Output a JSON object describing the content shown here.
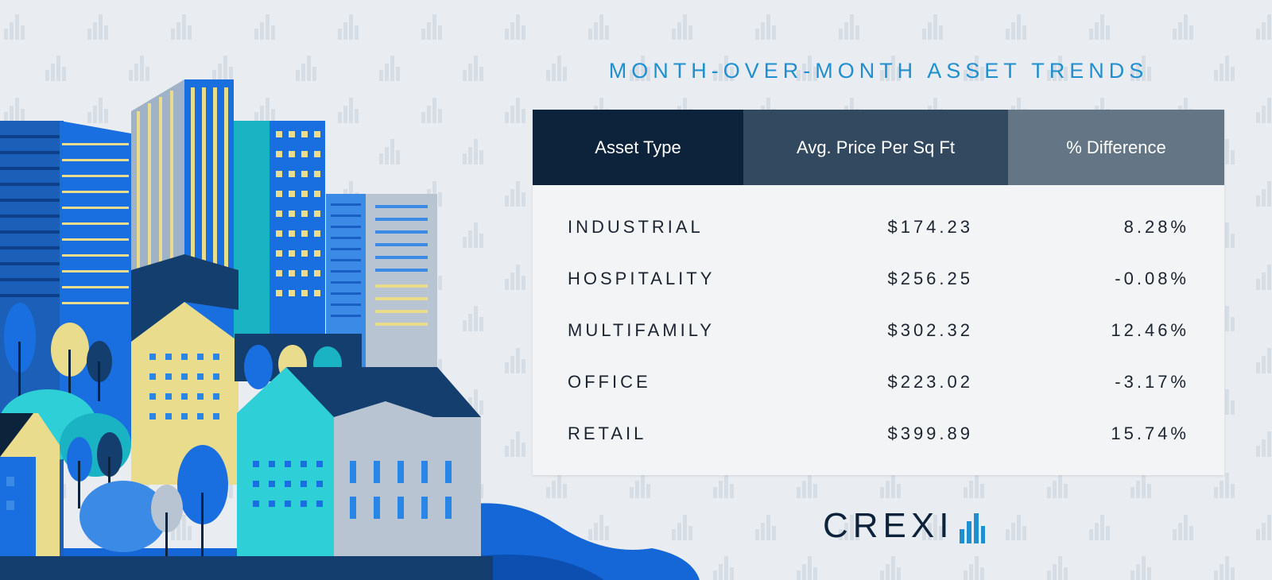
{
  "title": "MONTH-OVER-MONTH ASSET TRENDS",
  "table": {
    "headers": [
      "Asset Type",
      "Avg. Price Per Sq Ft",
      "% Difference"
    ],
    "rows": [
      {
        "asset": "INDUSTRIAL",
        "price": "$174.23",
        "diff": "8.28%"
      },
      {
        "asset": "HOSPITALITY",
        "price": "$256.25",
        "diff": "-0.08%"
      },
      {
        "asset": "MULTIFAMILY",
        "price": "$302.32",
        "diff": "12.46%"
      },
      {
        "asset": "OFFICE",
        "price": "$223.02",
        "diff": "-3.17%"
      },
      {
        "asset": "RETAIL",
        "price": "$399.89",
        "diff": "15.74%"
      }
    ]
  },
  "logo": {
    "text": "CREXI",
    "icon": "bar-chart-icon"
  },
  "colors": {
    "title": "#1f8fcf",
    "header_1": "#0d223b",
    "header_2": "#334960",
    "header_3": "#647685",
    "background": "#e9ecf0",
    "logo_accent": "#1f8fcf"
  }
}
